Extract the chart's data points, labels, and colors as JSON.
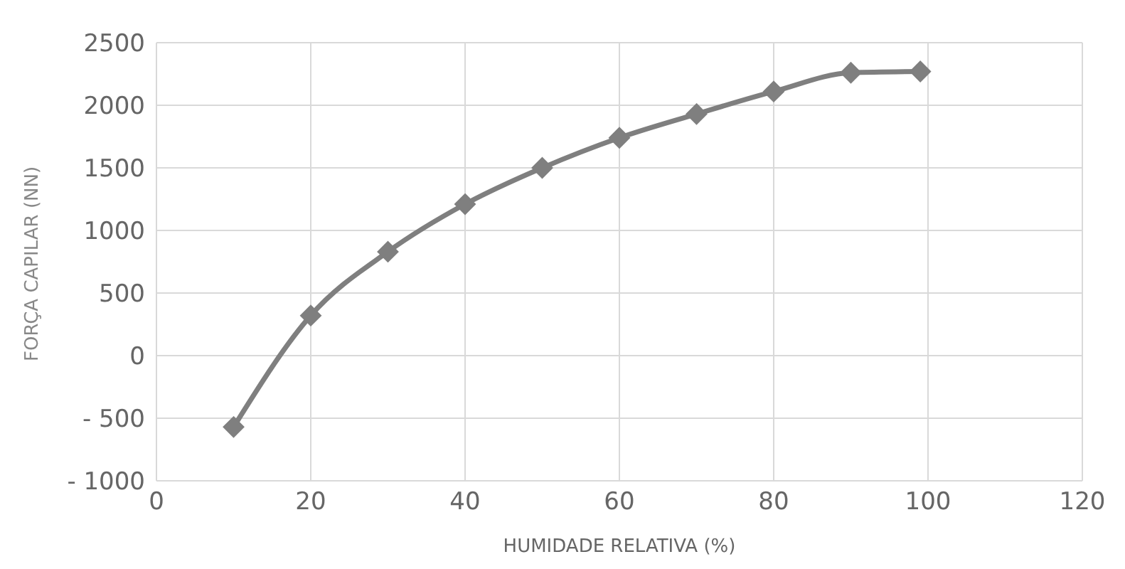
{
  "chart_data": {
    "type": "line",
    "xlabel": "HUMIDADE RELATIVA (%)",
    "ylabel": "FORÇA CAPILAR (NN)",
    "x": [
      10,
      20,
      30,
      40,
      50,
      60,
      70,
      80,
      90,
      99
    ],
    "series": [
      {
        "color": "#7f7f7f",
        "values": [
          -570,
          320,
          830,
          1210,
          1500,
          1740,
          1930,
          2110,
          2260,
          2270
        ]
      }
    ],
    "xlim": [
      0,
      120
    ],
    "xticks": [
      0,
      20,
      40,
      60,
      80,
      100,
      120
    ],
    "ylim": [
      -1000,
      2500
    ],
    "yticks": [
      {
        "value": -1000,
        "label": "- 1000"
      },
      {
        "value": -500,
        "label": "- 500"
      },
      0,
      500,
      1000,
      1500,
      2000,
      2500
    ],
    "grid": true,
    "marker": "diamond",
    "line_style": "solid",
    "legend": false
  }
}
